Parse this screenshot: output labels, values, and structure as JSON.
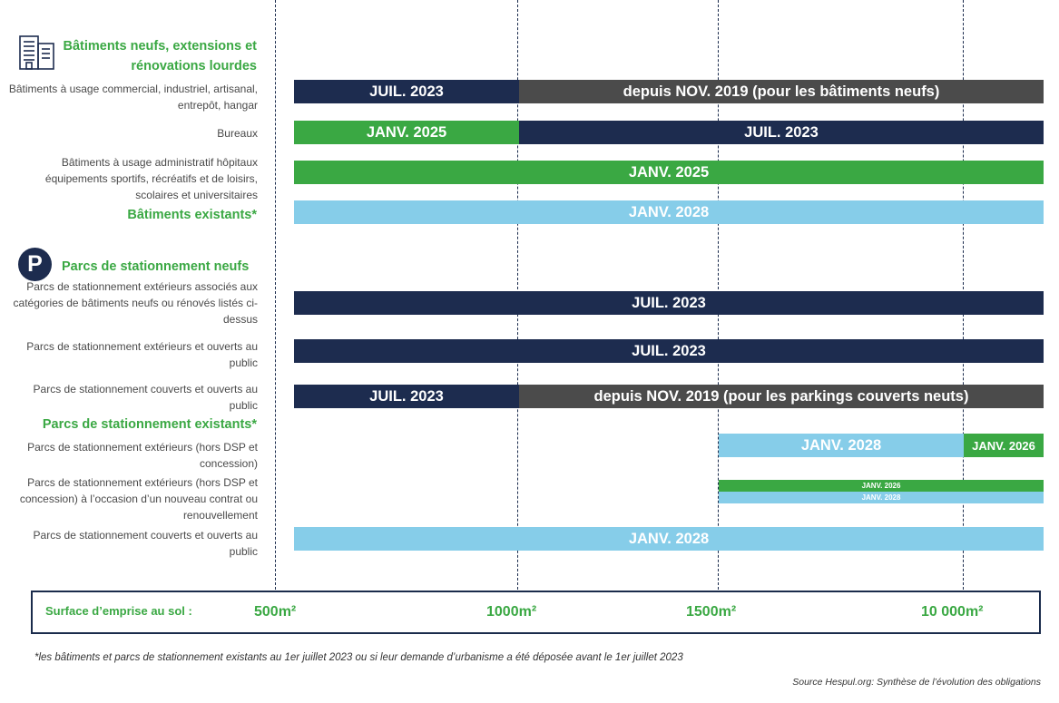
{
  "colors": {
    "navy": "#1d2c4f",
    "grey": "#4b4b4b",
    "green": "#3aa843",
    "lightblue": "#86cde9",
    "text_green": "#3aa843"
  },
  "icons": {
    "building": "building-icon",
    "parking": "parking-icon"
  },
  "sections": {
    "new_buildings": "Bâtiments neufs, extensions et rénovations lourdes",
    "existing_buildings": "Bâtiments existants*",
    "new_parkings": "Parcs de  stationnement neufs",
    "existing_parkings": "Parcs de stationnement existants*",
    "parking_letter": "P"
  },
  "chart_data": {
    "type": "bar",
    "orientation": "horizontal-timeline",
    "xlabel": "Surface d’emprise au sol :",
    "x_ticks": [
      "500m²",
      "1000m²",
      "1500m²",
      "10 000m²"
    ],
    "rows": [
      {
        "label": "Bâtiments à usage commercial, industriel, artisanal, entrepôt, hangar",
        "bars": [
          {
            "from": "500m²",
            "to": "1000m²",
            "text": "JUIL. 2023",
            "color": "navy"
          },
          {
            "from": "1000m²",
            "to": "end",
            "text": "depuis NOV. 2019 (pour les bâtiments neufs)",
            "color": "grey"
          }
        ]
      },
      {
        "label": "Bureaux",
        "bars": [
          {
            "from": "500m²",
            "to": "1000m²",
            "text": "JANV. 2025",
            "color": "green"
          },
          {
            "from": "1000m²",
            "to": "end",
            "text": "JUIL. 2023",
            "color": "navy"
          }
        ]
      },
      {
        "label": "Bâtiments à usage administratif hôpitaux équipements sportifs, récréatifs et de loisirs, scolaires et universitaires",
        "bars": [
          {
            "from": "500m²",
            "to": "end",
            "text": "JANV. 2025",
            "color": "green"
          }
        ]
      },
      {
        "label": "",
        "bars": [
          {
            "from": "500m²",
            "to": "end",
            "text": "JANV. 2028",
            "color": "lightblue"
          }
        ]
      },
      {
        "label": "Parcs de stationnement extérieurs associés aux catégories de bâtiments neufs ou rénovés listés ci-dessus",
        "bars": [
          {
            "from": "500m²",
            "to": "end",
            "text": "JUIL. 2023",
            "color": "navy"
          }
        ]
      },
      {
        "label": "Parcs de stationnement extérieurs et ouverts  au public",
        "bars": [
          {
            "from": "500m²",
            "to": "end",
            "text": "JUIL. 2023",
            "color": "navy"
          }
        ]
      },
      {
        "label": "Parcs de stationnement couverts et ouverts au public",
        "bars": [
          {
            "from": "500m²",
            "to": "1000m²",
            "text": "JUIL. 2023",
            "color": "navy"
          },
          {
            "from": "1000m²",
            "to": "end",
            "text": "depuis NOV. 2019 (pour les parkings couverts neuts)",
            "color": "grey"
          }
        ]
      },
      {
        "label": "Parcs de stationnement extérieurs (hors DSP et concession)",
        "bars": [
          {
            "from": "1500m²",
            "to": "10 000m²",
            "text": "JANV. 2028",
            "color": "lightblue"
          },
          {
            "from": "10 000m²",
            "to": "end",
            "text": "JANV. 2026",
            "color": "green"
          }
        ]
      },
      {
        "label": "Parcs de stationnement extérieurs (hors DSP et concession) à l’occasion d’un nouveau contrat ou renouvellement",
        "bars": [
          {
            "from": "1500m²",
            "to": "end",
            "text": "JANV. 2026",
            "color": "green"
          },
          {
            "from": "1500m²",
            "to": "end",
            "text": "JANV. 2028",
            "color": "lightblue"
          }
        ]
      },
      {
        "label": "Parcs de stationnement couverts et ouverts au public",
        "bars": [
          {
            "from": "500m²",
            "to": "end",
            "text": "JANV. 2028",
            "color": "lightblue"
          }
        ]
      }
    ]
  },
  "footnote": "*les bâtiments et parcs de stationnement existants au 1er juillet 2023 ou si leur demande d’urbanisme a été déposée avant le 1er juillet 2023",
  "source": "Source Hespul.org: Synthèse de l’évolution des obligations"
}
